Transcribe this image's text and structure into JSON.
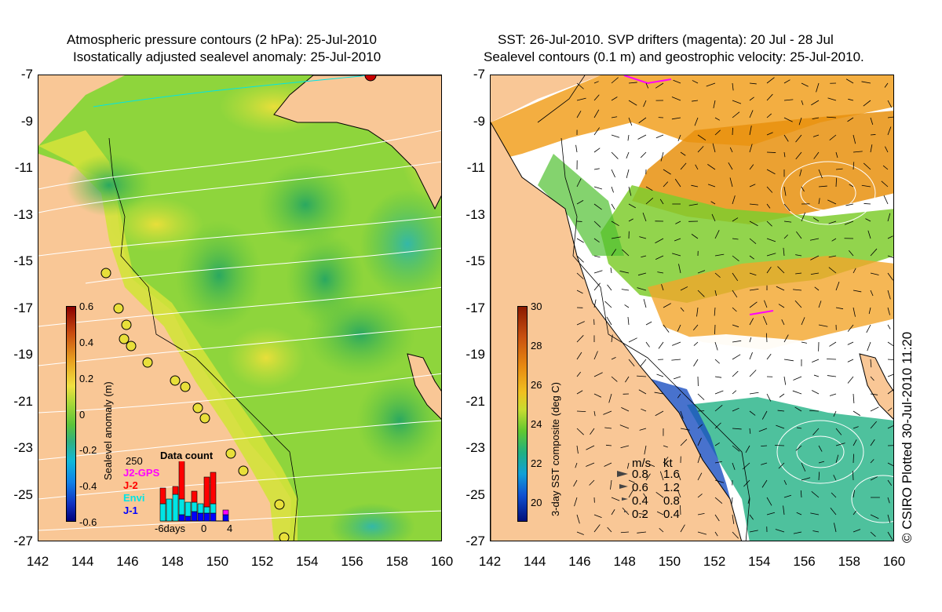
{
  "left_panel": {
    "title_line1": "Atmospheric pressure contours (2 hPa): 25-Jul-2010",
    "title_line2": "Isostatically adjusted sealevel anomaly: 25-Jul-2010",
    "colorbar": {
      "title": "Sealevel anomaly (m)",
      "ticks": [
        "0.6",
        "0.4",
        "0.2",
        "0",
        "-0.2",
        "-0.4",
        "-0.6"
      ]
    },
    "data_count": {
      "title": "Data count",
      "max_label": "250",
      "legend": [
        {
          "label": "J2-GPS",
          "color": "#ff00ff"
        },
        {
          "label": "J-2",
          "color": "#ff0000"
        },
        {
          "label": "Envi",
          "color": "#00e5e5"
        },
        {
          "label": "J-1",
          "color": "#0000ff"
        }
      ],
      "x_labels": [
        "-6days",
        "0",
        "4"
      ]
    }
  },
  "right_panel": {
    "title_line1": "SST: 26-Jul-2010. SVP drifters (magenta): 20 Jul - 28 Jul",
    "title_line2": "Sealevel contours (0.1 m) and geostrophic velocity: 25-Jul-2010.",
    "colorbar": {
      "title": "3-day SST composite (deg C)",
      "ticks": [
        "30",
        "28",
        "26",
        "24",
        "22",
        "20"
      ]
    },
    "velocity_legend": {
      "header_ms": "m/s",
      "header_kt": "kt",
      "rows": [
        {
          "ms": "0.8",
          "kt": "1.6"
        },
        {
          "ms": "0.6",
          "kt": "1.2"
        },
        {
          "ms": "0.4",
          "kt": "0.8"
        },
        {
          "ms": "0.2",
          "kt": "0.4"
        }
      ]
    }
  },
  "axes": {
    "lat_labels": [
      "-7",
      "-9",
      "-11",
      "-13",
      "-15",
      "-17",
      "-19",
      "-21",
      "-23",
      "-25",
      "-27"
    ],
    "lon_labels": [
      "142",
      "144",
      "146",
      "148",
      "150",
      "152",
      "154",
      "156",
      "158",
      "160"
    ]
  },
  "credit": "© CSIRO Plotted 30-Jul-2010 11:20",
  "colors": {
    "land": "#f9c796",
    "ocean_green": "#8fd93a",
    "ocean_dark": "#3bb84a",
    "ocean_yellow": "#d6e33a",
    "sst_orange": "#e8900e",
    "sst_green": "#50c030",
    "sst_blue": "#1a4fc0",
    "cloud_white": "#ffffff"
  }
}
